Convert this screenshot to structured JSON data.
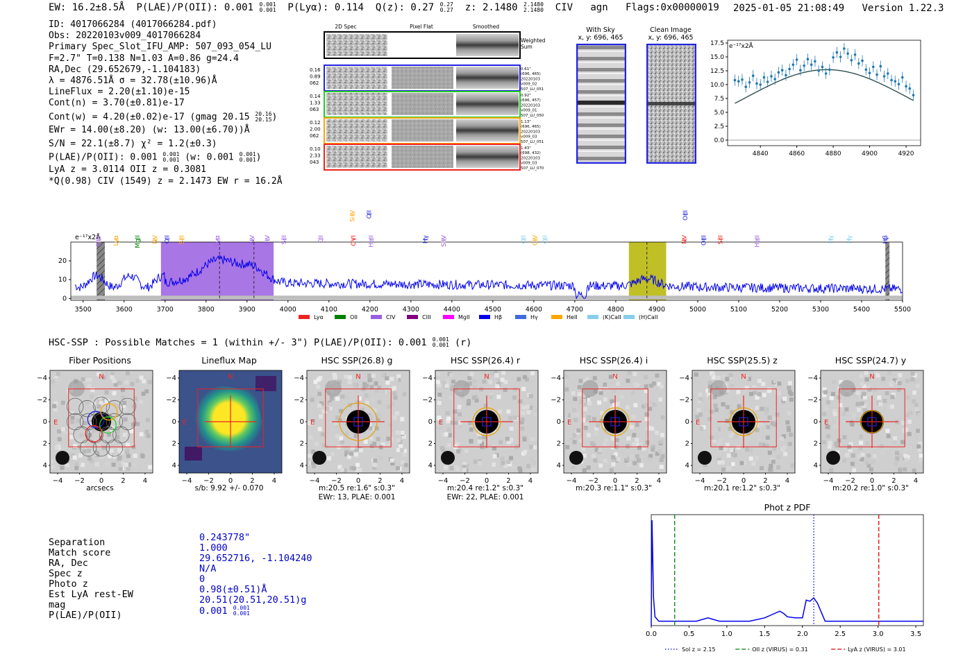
{
  "header": {
    "ew": "EW: 16.2±8.5Å",
    "plae": "P(LAE)/P(OII): 0.001",
    "plae_hi": "0.001",
    "plae_lo": "0.001",
    "plya": "P(Lyα): 0.114",
    "qz": "Q(z): 0.27",
    "qz_hi": "0.27",
    "qz_lo": "0.27",
    "z": "z: 2.1480",
    "z_hi": "2.1480",
    "z_lo": "2.1480",
    "civ": "CIV",
    "agn": "agn",
    "flags": "Flags:0x00000019",
    "timestamp": "2025-01-05 21:08:49",
    "version": "Version 1.22.3"
  },
  "info": {
    "id": "ID: 4017066284 (4017066284.pdf)",
    "obs": "Obs: 20220103v009_4017066284",
    "primary": "Primary Spec_Slot_IFU_AMP: 507_093_054_LU",
    "fwhm": "F=2.7\"  T=0.138  N=1.03  A=0.86  g=24.4",
    "radec": "RA,Dec (29.652679,-1.104183)",
    "lambda": "λ = 4876.51Å  σ = 32.78(±10.96)Å",
    "lineflux": "LineFlux = 2.20(±1.10)e-15",
    "contn": "Cont(n) = 3.70(±0.81)e-17",
    "contw": "Cont(w) = 4.20(±0.02)e-17 (gmag 20.15",
    "contw_hi": "20.16",
    "contw_lo": "20.15",
    "contw_end": ")",
    "ewr": "EWr = 14.00(±8.20) (w: 13.00(±6.70))Å",
    "sn": "S/N = 22.1(±8.7)  χ² = 1.2(±0.3)",
    "plae": "P(LAE)/P(OII): 0.001",
    "plae_hi": "0.001",
    "plae_lo": "0.001",
    "plae_w": "(w: 0.001",
    "plae_w_hi": "0.001",
    "plae_w_lo": "0.001",
    "plae_w_end": ")",
    "lya": "LyA z = 3.0114  OII z = 0.3081",
    "q": "*Q(0.98) CIV (1549) z = 2.1473  EW r = 16.2Å"
  },
  "cutouts": {
    "col_2d": "2D Spec",
    "col_flat": "Pixel Flat",
    "col_smooth": "Smoothed",
    "weighted": "Weighted Sum",
    "rows": [
      {
        "left": [
          "0.16",
          "0.89",
          "062"
        ],
        "right": [
          "0.61\"",
          "(696, 465)",
          "20220103",
          "v009_02",
          "507_LU_051"
        ],
        "color": "#2222dd"
      },
      {
        "left": [
          "0.14",
          "1.33",
          "063"
        ],
        "right": [
          "0.92\"",
          "(696, 457)",
          "20220103",
          "v009_01",
          "507_LU_050"
        ],
        "color": "#22cc22"
      },
      {
        "left": [
          "0.12",
          "2.00",
          "062"
        ],
        "right": [
          "1.13\"",
          "(696, 465)",
          "20220103",
          "v009_03",
          "507_LU_051"
        ],
        "color": "#ffa500"
      },
      {
        "left": [
          "0.10",
          "2.33",
          "043"
        ],
        "right": [
          "1.43\"",
          "(698, 432)",
          "20220103",
          "v009_03",
          "507_LU_070"
        ],
        "color": "#ee2222"
      }
    ]
  },
  "sky": {
    "with_sky_title": "With Sky",
    "with_sky_coords": "x, y: 696, 465",
    "clean_title": "Clean Image",
    "clean_coords": "x, y: 696, 465"
  },
  "chart_data": [
    {
      "type": "scatter",
      "name": "zoom-line-fit",
      "unit_label": "e⁻¹⁷x2Å",
      "xlim": [
        4822,
        4928
      ],
      "ylim": [
        -1,
        18
      ],
      "xticks": [
        4840,
        4860,
        4880,
        4900,
        4920
      ],
      "yticks": [
        0.0,
        2.5,
        5.0,
        7.5,
        10.0,
        12.5,
        15.0,
        17.5
      ],
      "x": [
        4826,
        4828,
        4830,
        4832,
        4834,
        4836,
        4838,
        4840,
        4842,
        4844,
        4846,
        4848,
        4850,
        4852,
        4854,
        4856,
        4858,
        4860,
        4862,
        4864,
        4866,
        4868,
        4870,
        4872,
        4874,
        4876,
        4878,
        4880,
        4882,
        4884,
        4886,
        4888,
        4890,
        4892,
        4894,
        4896,
        4898,
        4900,
        4902,
        4904,
        4906,
        4908,
        4910,
        4912,
        4914,
        4916,
        4918,
        4920,
        4922,
        4924
      ],
      "y": [
        10.8,
        10.6,
        10.9,
        9.6,
        10.4,
        11.6,
        10.2,
        10.0,
        11.3,
        10.5,
        11.5,
        11.0,
        12.2,
        12.6,
        11.7,
        12.8,
        13.6,
        14.5,
        12.6,
        13.4,
        14.6,
        13.6,
        14.2,
        12.5,
        13.2,
        12.0,
        12.7,
        14.9,
        15.8,
        15.0,
        16.5,
        15.6,
        14.4,
        15.4,
        13.8,
        14.3,
        12.7,
        12.1,
        13.2,
        11.8,
        13.3,
        11.5,
        12.0,
        10.8,
        10.6,
        10.1,
        11.3,
        9.7,
        9.3,
        8.1
      ],
      "fit": {
        "center": 4876.5,
        "sigma": 32.8,
        "amplitude": 12.7,
        "baseline": 0.0
      }
    },
    {
      "type": "line",
      "name": "full-spectrum",
      "unit_label": "e⁻¹⁷x2Å",
      "xlim": [
        3470,
        5500
      ],
      "ylim": [
        -1,
        30
      ],
      "xticks": [
        3500,
        3600,
        3700,
        3800,
        3900,
        4000,
        4100,
        4200,
        4300,
        4400,
        4500,
        4600,
        4700,
        4800,
        4900,
        5000,
        5100,
        5200,
        5300,
        5400,
        5500
      ],
      "yticks": [
        0,
        10,
        20
      ],
      "spans": [
        {
          "from": 3690,
          "to": 3965,
          "color": "#9a5ee0"
        },
        {
          "from": 4832,
          "to": 4923,
          "color": "#b5b500"
        }
      ],
      "hatched": [
        {
          "from": 3533,
          "to": 3553
        },
        {
          "from": 5458,
          "to": 5468
        }
      ],
      "dashed": [
        3833,
        3917,
        4876
      ],
      "lines": [
        {
          "label": "SiIV",
          "x": 3543,
          "color": "#9a5ee0",
          "row": "low"
        },
        {
          "label": "Lyα",
          "x": 3585,
          "color": "#ffa500",
          "row": "low"
        },
        {
          "label": "MgII",
          "x": 3638,
          "color": "#008000",
          "row": "low"
        },
        {
          "label": "NV",
          "x": 3680,
          "color": "#ffa500",
          "row": "low"
        },
        {
          "label": "OII",
          "x": 3710,
          "color": "#2222dd",
          "row": "low"
        },
        {
          "label": "SiII",
          "x": 3745,
          "color": "#ffa500",
          "row": "low"
        },
        {
          "label": "Lyα",
          "x": 3833,
          "color": "#9a5ee0",
          "row": "low"
        },
        {
          "label": "NV",
          "x": 3917,
          "color": "#9a5ee0",
          "row": "low"
        },
        {
          "label": "CIV",
          "x": 3955,
          "color": "#9a5ee0",
          "row": "low"
        },
        {
          "label": "SiII",
          "x": 3995,
          "color": "#9a5ee0",
          "row": "low"
        },
        {
          "label": "CII",
          "x": 4085,
          "color": "#9a5ee0",
          "row": "low"
        },
        {
          "label": "SiIV",
          "x": 4162,
          "color": "#ffa500",
          "row": "high"
        },
        {
          "label": "OVI",
          "x": 4165,
          "color": "#ee2222",
          "row": "low"
        },
        {
          "label": "OII",
          "x": 4203,
          "color": "#2222dd",
          "row": "high"
        },
        {
          "label": "HeII",
          "x": 4208,
          "color": "#9a5ee0",
          "row": "low"
        },
        {
          "label": "Hγ",
          "x": 4340,
          "color": "#2222dd",
          "row": "low"
        },
        {
          "label": "SiIV",
          "x": 4385,
          "color": "#9a5ee0",
          "row": "low"
        },
        {
          "label": "OII",
          "x": 4580,
          "color": "#87ceeb",
          "row": "low"
        },
        {
          "label": "CIV",
          "x": 4608,
          "color": "#ffa500",
          "row": "low"
        },
        {
          "label": "OII",
          "x": 4632,
          "color": "#87ceeb",
          "row": "low"
        },
        {
          "label": "OIII",
          "x": 4975,
          "color": "#2222dd",
          "row": "high"
        },
        {
          "label": "NV",
          "x": 4972,
          "color": "#ee2222",
          "row": "low"
        },
        {
          "label": "OIII",
          "x": 5020,
          "color": "#2222dd",
          "row": "low"
        },
        {
          "label": "SiII",
          "x": 5060,
          "color": "#ee2222",
          "row": "low"
        },
        {
          "label": "HeII",
          "x": 5150,
          "color": "#9a5ee0",
          "row": "low"
        },
        {
          "label": "Hγ",
          "x": 5330,
          "color": "#87ceeb",
          "row": "low"
        },
        {
          "label": "Hγ",
          "x": 5375,
          "color": "#87ceeb",
          "row": "low"
        },
        {
          "label": "Hβ",
          "x": 5463,
          "color": "#2222dd",
          "row": "low"
        }
      ],
      "legend": [
        {
          "label": "Lyα",
          "color": "#ee2222"
        },
        {
          "label": "OII",
          "color": "#008000"
        },
        {
          "label": "CIV",
          "color": "#9a5ee0"
        },
        {
          "label": "CIII",
          "color": "#800080"
        },
        {
          "label": "MgII",
          "color": "#ff00ff"
        },
        {
          "label": "Hβ",
          "color": "#0000ee"
        },
        {
          "label": "Hγ",
          "color": "#4169e1"
        },
        {
          "label": "HeII",
          "color": "#ffa500"
        },
        {
          "label": "(K)CaII",
          "color": "#87ceeb"
        },
        {
          "label": "(H)CaII",
          "color": "#87ceeb"
        }
      ]
    },
    {
      "type": "line",
      "name": "phot-z-pdf",
      "title": "Phot z PDF",
      "xlim": [
        0.0,
        3.6
      ],
      "ylim": [
        0,
        1.0
      ],
      "xticks": [
        0.0,
        0.5,
        1.0,
        1.5,
        2.0,
        2.5,
        3.0,
        3.5
      ],
      "x": [
        0.0,
        0.01,
        0.03,
        0.05,
        0.1,
        0.3,
        0.6,
        0.7,
        0.75,
        0.8,
        0.9,
        1.0,
        1.3,
        1.5,
        1.6,
        1.7,
        1.75,
        1.8,
        1.9,
        2.0,
        2.05,
        2.1,
        2.15,
        2.2,
        2.25,
        2.3,
        2.5,
        3.0,
        3.6
      ],
      "y": [
        0.0,
        0.95,
        0.25,
        0.08,
        0.04,
        0.04,
        0.04,
        0.06,
        0.07,
        0.06,
        0.04,
        0.04,
        0.04,
        0.07,
        0.1,
        0.13,
        0.11,
        0.08,
        0.07,
        0.07,
        0.23,
        0.22,
        0.25,
        0.2,
        0.12,
        0.04,
        0.04,
        0.04,
        0.04
      ],
      "vlines": [
        {
          "x": 2.15,
          "color": "#0000dd",
          "style": "dotted",
          "label": "Sol z = 2.15"
        },
        {
          "x": 0.31,
          "color": "#008000",
          "style": "dashed",
          "label": "OII z (VIRUS) = 0.31"
        },
        {
          "x": 3.01,
          "color": "#dd0000",
          "style": "dashed",
          "label": "LyA z (VIRUS) = 3.01"
        }
      ]
    }
  ],
  "hsc": {
    "matches_text": "HSC-SSP : Possible Matches = 1 (within +/- 3\")  P(LAE)/P(OII): 0.001",
    "matches_hi": "0.001",
    "matches_lo": "0.001",
    "matches_band": "(r)",
    "ticks": [
      "4",
      "2",
      "0",
      "−2",
      "−4"
    ],
    "xticks": [
      "−4",
      "−2",
      "0",
      "2",
      "4"
    ],
    "panels": [
      {
        "title": "Fiber Positions",
        "caption1": "arcsecs",
        "caption2": ""
      },
      {
        "title": "Lineflux Map",
        "caption1": "s/b: 9.92 +/- 0.070",
        "caption2": ""
      },
      {
        "title": "HSC SSP(26.8) g",
        "caption1": "m:20.5  re:1.6\"  s:0.3\"",
        "caption2": "EWr: 13, PLAE: 0.001"
      },
      {
        "title": "HSC SSP(26.4) r",
        "caption1": "m:20.4  re:1.2\"  s:0.3\"",
        "caption2": "EWr: 22, PLAE: 0.001"
      },
      {
        "title": "HSC SSP(26.4) i",
        "caption1": "m:20.3  re:1.1\"  s:0.3\"",
        "caption2": ""
      },
      {
        "title": "HSC SSP(25.5) z",
        "caption1": "m:20.1  re:1.2\"  s:0.3\"",
        "caption2": ""
      },
      {
        "title": "HSC SSP(24.7) y",
        "caption1": "m:20.2  re:1.0\"  s:0.3\"",
        "caption2": ""
      }
    ],
    "north": "N",
    "east": "E"
  },
  "match": {
    "keys": [
      "Separation",
      "Match score",
      "RA, Dec",
      "Spec z",
      "Photo z",
      "Est LyA rest-EW",
      "mag",
      "P(LAE)/P(OII)"
    ],
    "values": [
      "0.243778\"",
      "1.000",
      "29.652716, -1.104240",
      "N/A",
      "0",
      "0.98(±0.51)Å",
      "20.51(20.51,20.51)g",
      "0.001"
    ],
    "plae_hi": "0.001",
    "plae_lo": "0.001"
  }
}
